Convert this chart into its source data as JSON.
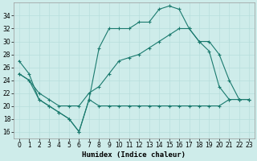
{
  "title": "",
  "xlabel": "Humidex (Indice chaleur)",
  "ylabel": "",
  "bg_color": "#ceecea",
  "grid_color": "#b8dedd",
  "line_color": "#1a7a6e",
  "ylim": [
    15,
    36
  ],
  "xlim": [
    -0.5,
    23.5
  ],
  "yticks": [
    16,
    18,
    20,
    22,
    24,
    26,
    28,
    30,
    32,
    34
  ],
  "xticks": [
    0,
    1,
    2,
    3,
    4,
    5,
    6,
    7,
    8,
    9,
    10,
    11,
    12,
    13,
    14,
    15,
    16,
    17,
    18,
    19,
    20,
    21,
    22,
    23
  ],
  "series": [
    {
      "x": [
        0,
        1,
        2,
        3,
        4,
        5,
        6,
        7,
        8,
        9,
        10,
        11,
        12,
        13,
        14,
        15,
        16,
        17,
        18,
        19,
        20,
        21,
        22,
        23
      ],
      "y": [
        27,
        25,
        21,
        20,
        19,
        18,
        16,
        21,
        29,
        32,
        32,
        32,
        33,
        33,
        35,
        35.5,
        35,
        32,
        30,
        28.5,
        23,
        21,
        21,
        21
      ]
    },
    {
      "x": [
        0,
        1,
        2,
        3,
        4,
        5,
        6,
        7,
        8,
        9,
        10,
        11,
        12,
        13,
        14,
        15,
        16,
        17,
        18,
        19,
        20,
        21,
        22,
        23
      ],
      "y": [
        25,
        24,
        21,
        20,
        19,
        18,
        16,
        21,
        20,
        20,
        20,
        20,
        20,
        20,
        20,
        20,
        20,
        20,
        20,
        20,
        20,
        21,
        21,
        21
      ]
    },
    {
      "x": [
        0,
        1,
        2,
        3,
        4,
        5,
        6,
        7,
        8,
        9,
        10,
        11,
        12,
        13,
        14,
        15,
        16,
        17,
        18,
        19,
        20,
        21,
        22,
        23
      ],
      "y": [
        25,
        24,
        22,
        21,
        20,
        20,
        20,
        22,
        23,
        25,
        27,
        27.5,
        28,
        29,
        30,
        31,
        32,
        32,
        30,
        30,
        28,
        24,
        21,
        21
      ]
    }
  ]
}
